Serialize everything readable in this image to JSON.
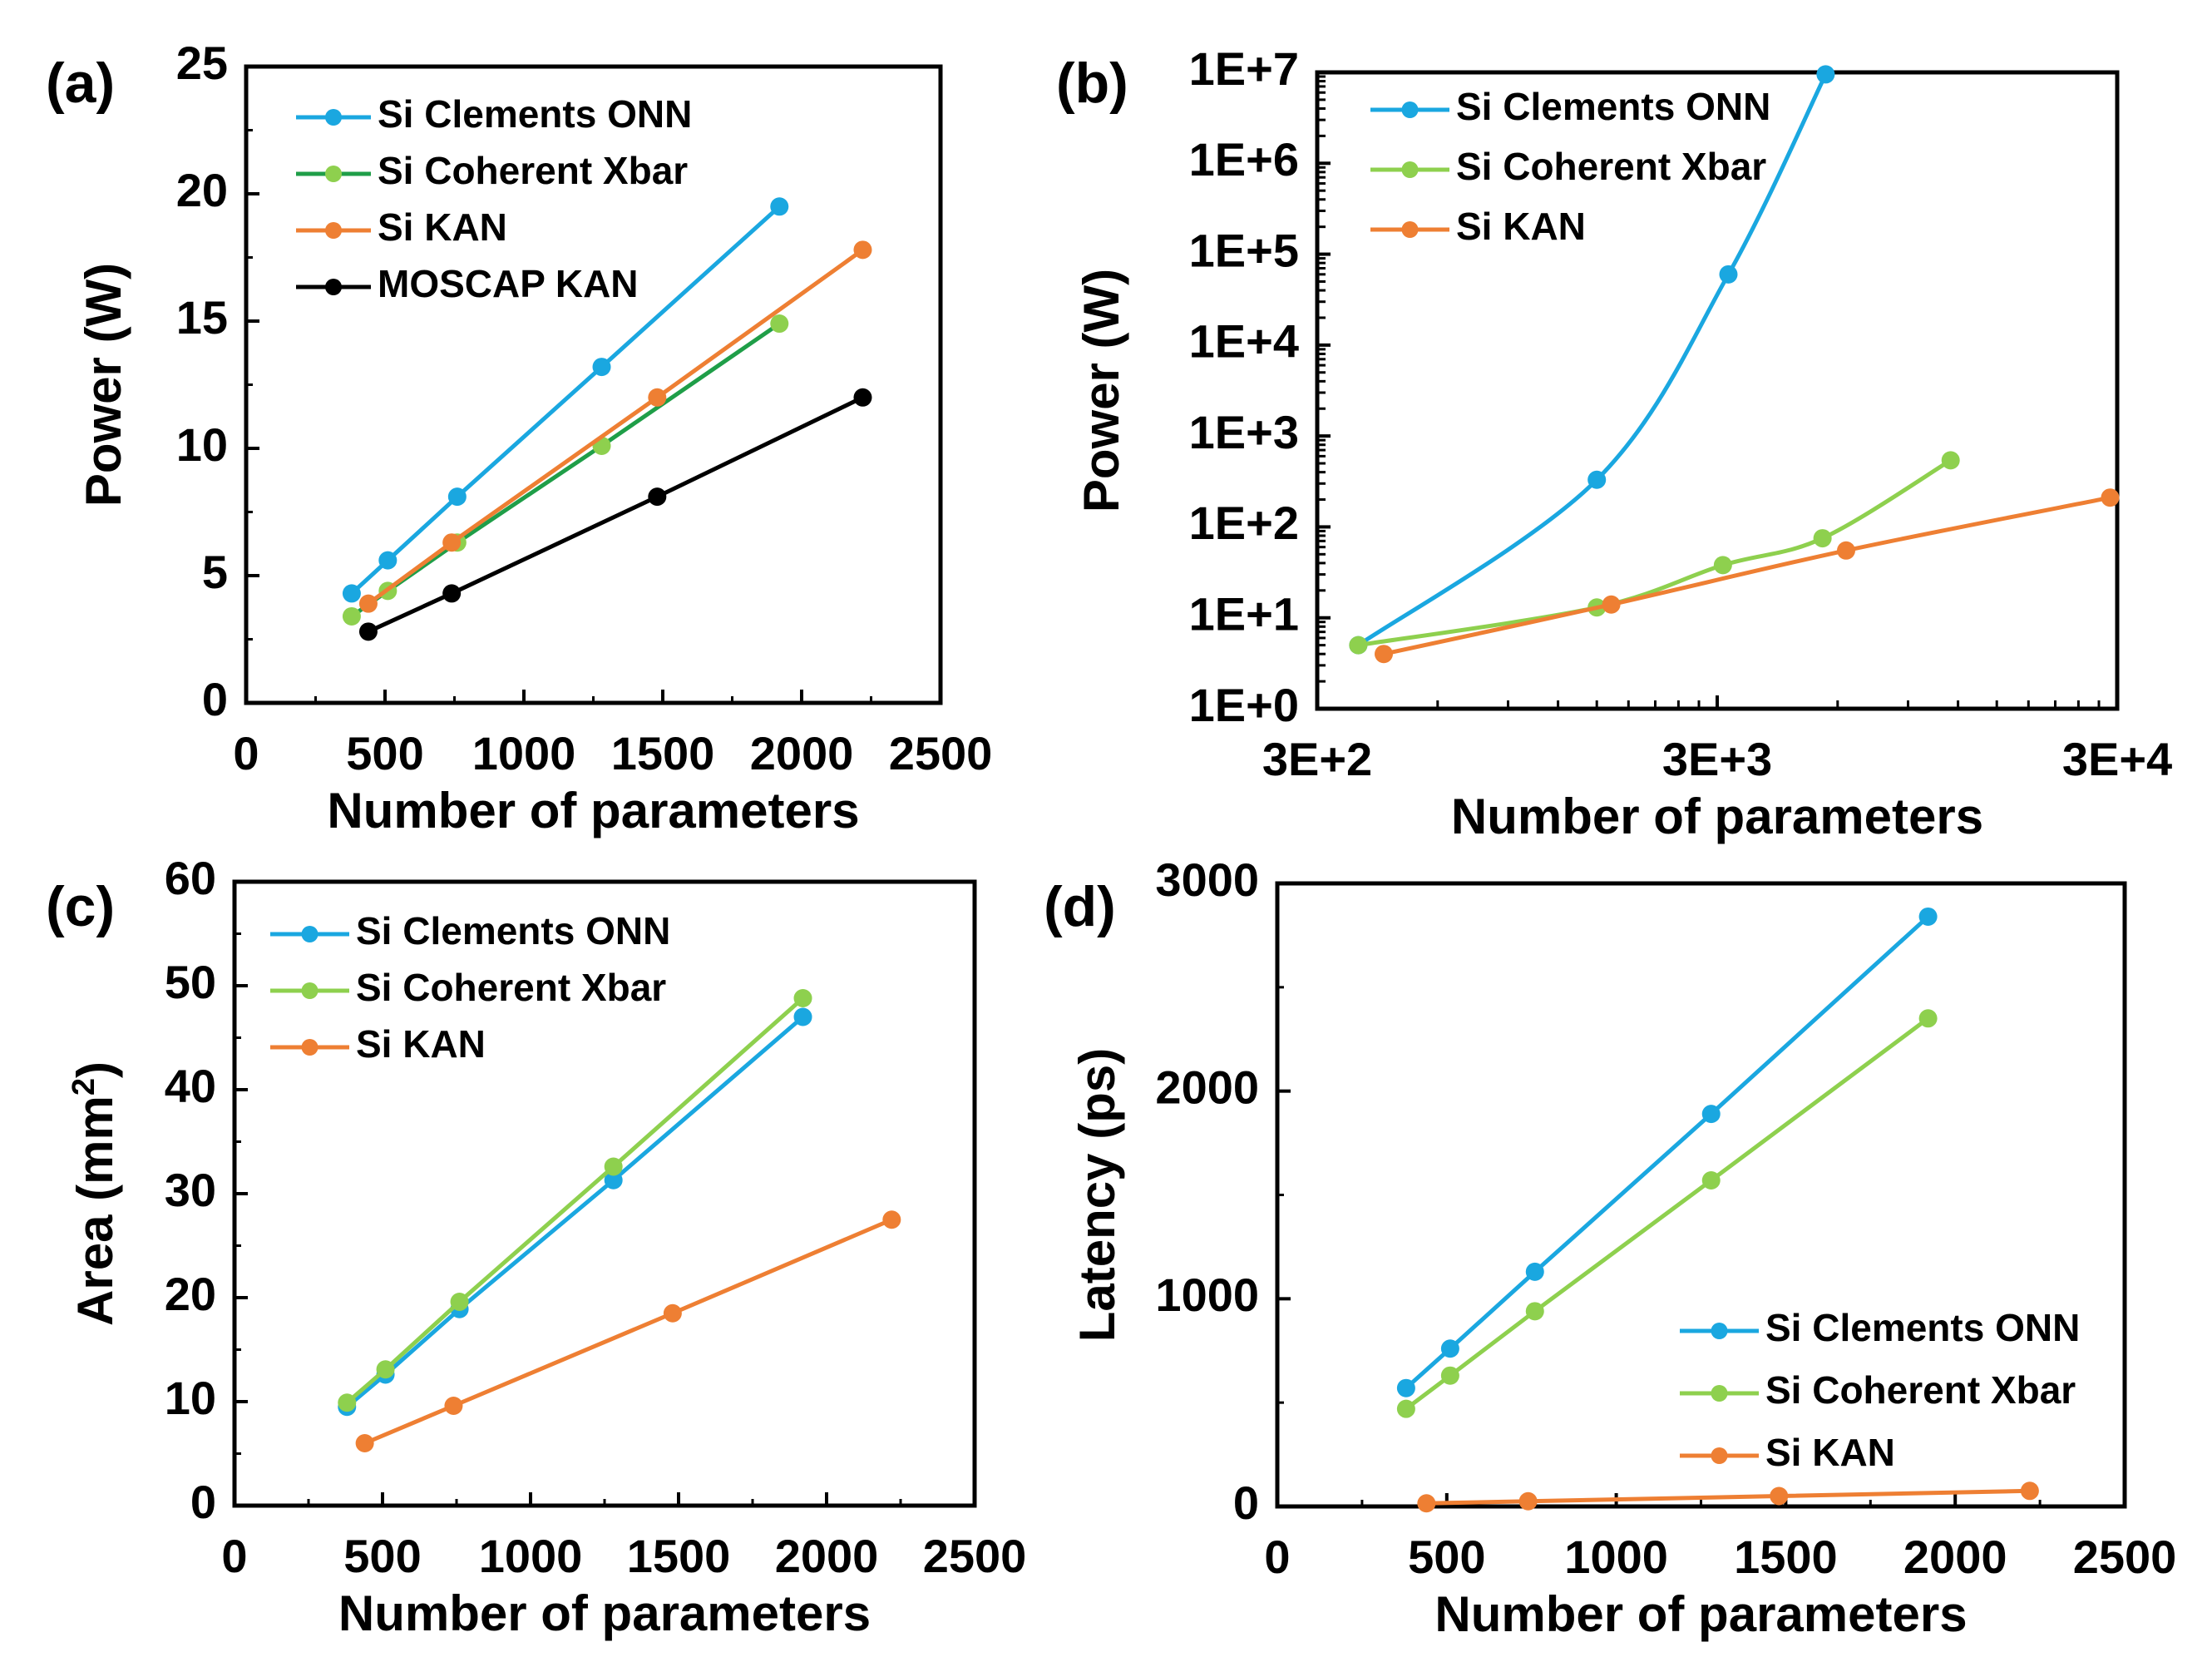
{
  "colors": {
    "clements": "#1aa7e0",
    "xbar": "#8ed04e",
    "xbar_line_a": "#1f9e48",
    "kan": "#ee7f33",
    "moscap": "#000000"
  },
  "chart_data": [
    {
      "panel": "(a)",
      "type": "line",
      "title": "",
      "xlabel": "Number of parameters",
      "ylabel": "Power (W)",
      "xlim": [
        0,
        2500
      ],
      "ylim": [
        0,
        25
      ],
      "xticks": [
        0,
        500,
        1000,
        1500,
        2000,
        2500
      ],
      "xtick_labels": [
        "0",
        "500",
        "1000",
        "1500",
        "2000",
        "2500"
      ],
      "yticks": [
        0,
        5,
        10,
        15,
        20,
        25
      ],
      "ytick_labels": [
        "0",
        "5",
        "10",
        "15",
        "20",
        "25"
      ],
      "legend_position": "top-left",
      "series": [
        {
          "name": "Si Clements ONN",
          "color": "#1aa7e0",
          "x": [
            380,
            510,
            760,
            1280,
            1920
          ],
          "y": [
            4.3,
            5.6,
            8.1,
            13.2,
            19.5
          ]
        },
        {
          "name": "Si Coherent Xbar",
          "color": "#8ed04e",
          "line_color": "#1f9e48",
          "x": [
            380,
            510,
            760,
            1280,
            1920
          ],
          "y": [
            3.4,
            4.4,
            6.3,
            10.1,
            14.9
          ]
        },
        {
          "name": "Si KAN",
          "color": "#ee7f33",
          "x": [
            440,
            740,
            1480,
            2220
          ],
          "y": [
            3.9,
            6.3,
            12.0,
            17.8
          ]
        },
        {
          "name": "MOSCAP KAN",
          "color": "#000000",
          "x": [
            440,
            740,
            1480,
            2220
          ],
          "y": [
            2.8,
            4.3,
            8.1,
            12.0
          ]
        }
      ]
    },
    {
      "panel": "(b)",
      "type": "line",
      "title": "",
      "xlabel": "Number of parameters",
      "ylabel": "Power (W)",
      "xscale": "log",
      "yscale": "log",
      "xlim": [
        300,
        30000
      ],
      "ylim": [
        1,
        10000000
      ],
      "xticks": [
        300,
        3000,
        30000
      ],
      "xtick_labels": [
        "3E+2",
        "3E+3",
        "3E+4"
      ],
      "yticks": [
        1,
        10,
        100,
        1000,
        10000,
        100000,
        1000000,
        10000000
      ],
      "ytick_labels": [
        "1E+0",
        "1E+1",
        "1E+2",
        "1E+3",
        "1E+4",
        "1E+5",
        "1E+6",
        "1E+7"
      ],
      "legend_position": "top-left",
      "series": [
        {
          "name": "Si Clements ONN",
          "color": "#1aa7e0",
          "x": [
            380,
            1500,
            3200,
            5600
          ],
          "y": [
            5,
            330,
            60000,
            9500000
          ]
        },
        {
          "name": "Si Coherent Xbar",
          "color": "#8ed04e",
          "x": [
            380,
            1500,
            3100,
            5500,
            11500
          ],
          "y": [
            5,
            13,
            38,
            75,
            540
          ]
        },
        {
          "name": "Si KAN",
          "color": "#ee7f33",
          "x": [
            440,
            1630,
            6300,
            28800
          ],
          "y": [
            4,
            14,
            55,
            210
          ]
        }
      ]
    },
    {
      "panel": "(c)",
      "type": "line",
      "title": "",
      "xlabel": "Number of parameters",
      "ylabel_main": "Area (mm",
      "ylabel_sup": "2",
      "ylabel_end": ")",
      "xlim": [
        0,
        2500
      ],
      "ylim": [
        0,
        60
      ],
      "xticks": [
        0,
        500,
        1000,
        1500,
        2000,
        2500
      ],
      "xtick_labels": [
        "0",
        "500",
        "1000",
        "1500",
        "2000",
        "2500"
      ],
      "yticks": [
        0,
        10,
        20,
        30,
        40,
        50,
        60
      ],
      "ytick_labels": [
        "0",
        "10",
        "20",
        "30",
        "40",
        "50",
        "60"
      ],
      "legend_position": "top-left",
      "series": [
        {
          "name": "Si Clements ONN",
          "color": "#1aa7e0",
          "x": [
            380,
            510,
            760,
            1280,
            1920
          ],
          "y": [
            9.5,
            12.6,
            18.9,
            31.3,
            47.0
          ]
        },
        {
          "name": "Si Coherent Xbar",
          "color": "#8ed04e",
          "x": [
            380,
            510,
            760,
            1280,
            1920
          ],
          "y": [
            9.9,
            13.1,
            19.6,
            32.6,
            48.8
          ]
        },
        {
          "name": "Si KAN",
          "color": "#ee7f33",
          "x": [
            440,
            740,
            1480,
            2220
          ],
          "y": [
            6.0,
            9.6,
            18.5,
            27.5
          ]
        }
      ]
    },
    {
      "panel": "(d)",
      "type": "line",
      "title": "",
      "xlabel": "Number of parameters",
      "ylabel": "Latency (ps)",
      "xlim": [
        0,
        2500
      ],
      "ylim": [
        0,
        3000
      ],
      "xticks": [
        0,
        500,
        1000,
        1500,
        2000,
        2500
      ],
      "xtick_labels": [
        "0",
        "500",
        "1000",
        "1500",
        "2000",
        "2500"
      ],
      "yticks": [
        0,
        1000,
        2000,
        3000
      ],
      "ytick_labels": [
        "0",
        "1000",
        "2000",
        "3000"
      ],
      "legend_position": "bottom-right",
      "series": [
        {
          "name": "Si Clements ONN",
          "color": "#1aa7e0",
          "x": [
            380,
            510,
            760,
            1280,
            1920
          ],
          "y": [
            570,
            760,
            1130,
            1890,
            2840
          ]
        },
        {
          "name": "Si Coherent Xbar",
          "color": "#8ed04e",
          "x": [
            380,
            510,
            760,
            1280,
            1920
          ],
          "y": [
            470,
            630,
            940,
            1570,
            2350
          ]
        },
        {
          "name": "Si KAN",
          "color": "#ee7f33",
          "x": [
            440,
            740,
            1480,
            2220
          ],
          "y": [
            15,
            25,
            50,
            75
          ]
        }
      ]
    }
  ]
}
